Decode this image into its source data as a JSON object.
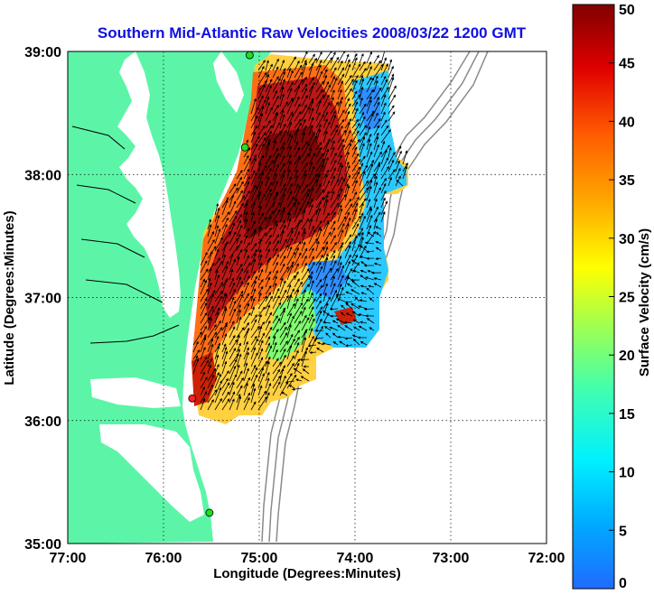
{
  "title": "Southern Mid-Atlantic Raw Velocities 2008/03/22 1200 GMT",
  "xlabel": "Longitude (Degrees:Minutes)",
  "ylabel": "Latitude (Degrees:Minutes)",
  "colorbar_label": "Surface Velocity (cm/s)",
  "colors": {
    "title": "#1010e0",
    "land": "#5cf5a8",
    "water": "#ffffff",
    "coast": "#000000",
    "bathymetry": "#8a8a8a",
    "station": "#22dd22",
    "station_highlight": "#ff2020"
  },
  "chart_data": {
    "type": "heatmap",
    "title": "Southern Mid-Atlantic Raw Velocities 2008/03/22 1200 GMT",
    "xlabel": "Longitude (Degrees:Minutes)",
    "ylabel": "Latitude (Degrees:Minutes)",
    "xlim": [
      -77.0,
      -72.0
    ],
    "ylim": [
      35.0,
      39.0
    ],
    "x_ticks": [
      {
        "value": -77.0,
        "label": "77:00"
      },
      {
        "value": -76.0,
        "label": "76:00"
      },
      {
        "value": -75.0,
        "label": "75:00"
      },
      {
        "value": -74.0,
        "label": "74:00"
      },
      {
        "value": -73.0,
        "label": "73:00"
      },
      {
        "value": -72.0,
        "label": "72:00"
      }
    ],
    "y_ticks": [
      {
        "value": 35.0,
        "label": "35:00"
      },
      {
        "value": 36.0,
        "label": "36:00"
      },
      {
        "value": 37.0,
        "label": "37:00"
      },
      {
        "value": 38.0,
        "label": "38:00"
      },
      {
        "value": 39.0,
        "label": "39:00"
      }
    ],
    "grid": true,
    "colorbar": {
      "label": "Surface Velocity (cm/s)",
      "range": [
        0,
        50
      ],
      "ticks": [
        0,
        5,
        10,
        15,
        20,
        25,
        30,
        35,
        40,
        45,
        50
      ],
      "colormap": "jet"
    },
    "stations": [
      {
        "lon": -75.1,
        "lat": 38.97,
        "color": "green"
      },
      {
        "lon": -75.15,
        "lat": 38.22,
        "color": "green"
      },
      {
        "lon": -75.7,
        "lat": 36.18,
        "color": "red"
      },
      {
        "lon": -75.52,
        "lat": 35.25,
        "color": "green"
      }
    ]
  }
}
